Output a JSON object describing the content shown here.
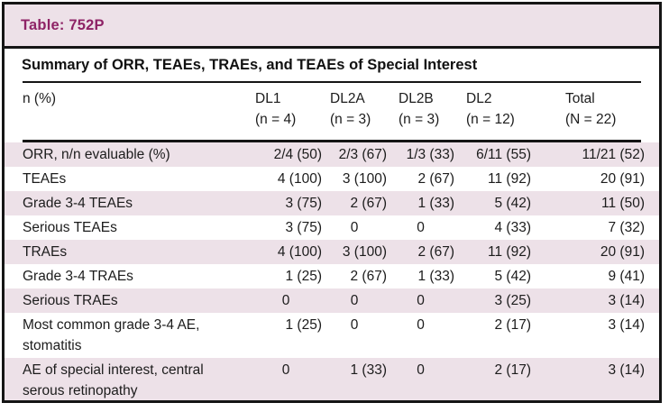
{
  "colors": {
    "accent_title": "#8E2366",
    "band_background": "#EDE1E8",
    "stripe_background": "#EDE1E8",
    "border": "#151515",
    "text": "#1C1C1C"
  },
  "header": {
    "table_id": "Table: 752P"
  },
  "table": {
    "title": "Summary of ORR, TEAEs, TRAEs, and TEAEs of Special Interest",
    "label_column_header": "n (%)",
    "columns": [
      {
        "name": "DL1",
        "sub": "(n = 4)"
      },
      {
        "name": "DL2A",
        "sub": "(n = 3)"
      },
      {
        "name": "DL2B",
        "sub": "(n = 3)"
      },
      {
        "name": "DL2",
        "sub": "(n = 12)"
      },
      {
        "name": "Total",
        "sub": "(N = 22)"
      }
    ],
    "rows": [
      {
        "label": "ORR, n/n evaluable (%)",
        "values": [
          "2/4 (50)",
          "2/3 (67)",
          "1/3 (33)",
          "6/11 (55)",
          "11/21 (52)"
        ]
      },
      {
        "label": "TEAEs",
        "values": [
          "4 (100)",
          "3 (100)",
          "2 (67)",
          "11 (92)",
          "20 (91)"
        ]
      },
      {
        "label": "Grade 3-4 TEAEs",
        "values": [
          "3 (75)",
          "2 (67)",
          "1 (33)",
          "5 (42)",
          "11 (50)"
        ]
      },
      {
        "label": "Serious TEAEs",
        "values": [
          "3 (75)",
          "0",
          "0",
          "4 (33)",
          "7 (32)"
        ]
      },
      {
        "label": "TRAEs",
        "values": [
          "4 (100)",
          "3 (100)",
          "2 (67)",
          "11 (92)",
          "20 (91)"
        ]
      },
      {
        "label": "Grade 3-4 TRAEs",
        "values": [
          "1 (25)",
          "2 (67)",
          "1 (33)",
          "5 (42)",
          "9 (41)"
        ]
      },
      {
        "label": "Serious TRAEs",
        "values": [
          "0",
          "0",
          "0",
          "3 (25)",
          "3 (14)"
        ]
      },
      {
        "label": "Most common grade 3-4 AE, stomatitis",
        "values": [
          "1 (25)",
          "0",
          "0",
          "2 (17)",
          "3 (14)"
        ]
      },
      {
        "label": "AE of special interest, central serous retinopathy",
        "values": [
          "0",
          "1 (33)",
          "0",
          "2 (17)",
          "3 (14)"
        ]
      }
    ]
  }
}
